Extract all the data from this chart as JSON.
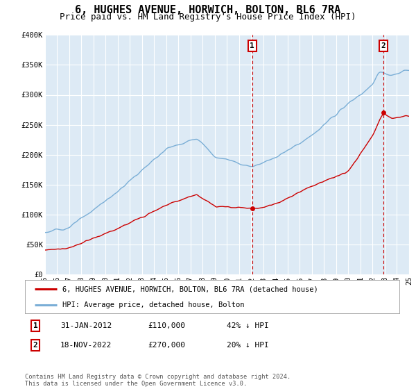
{
  "title": "6, HUGHES AVENUE, HORWICH, BOLTON, BL6 7RA",
  "subtitle": "Price paid vs. HM Land Registry's House Price Index (HPI)",
  "legend_line1": "6, HUGHES AVENUE, HORWICH, BOLTON, BL6 7RA (detached house)",
  "legend_line2": "HPI: Average price, detached house, Bolton",
  "sale1_date": "31-JAN-2012",
  "sale1_price": "£110,000",
  "sale1_hpi": "42% ↓ HPI",
  "sale1_year": 2012.08,
  "sale1_value": 110000,
  "sale2_date": "18-NOV-2022",
  "sale2_price": "£270,000",
  "sale2_hpi": "20% ↓ HPI",
  "sale2_year": 2022.88,
  "sale2_value": 270000,
  "footer": "Contains HM Land Registry data © Crown copyright and database right 2024.\nThis data is licensed under the Open Government Licence v3.0.",
  "y_min": 0,
  "y_max": 400000,
  "x_min": 1995,
  "x_max": 2025,
  "bg_color": "#ddeaf5",
  "red_color": "#cc0000",
  "blue_color": "#7aaed6",
  "grid_color": "#ffffff",
  "title_fontsize": 11,
  "subtitle_fontsize": 9,
  "tick_fontsize": 7.5
}
